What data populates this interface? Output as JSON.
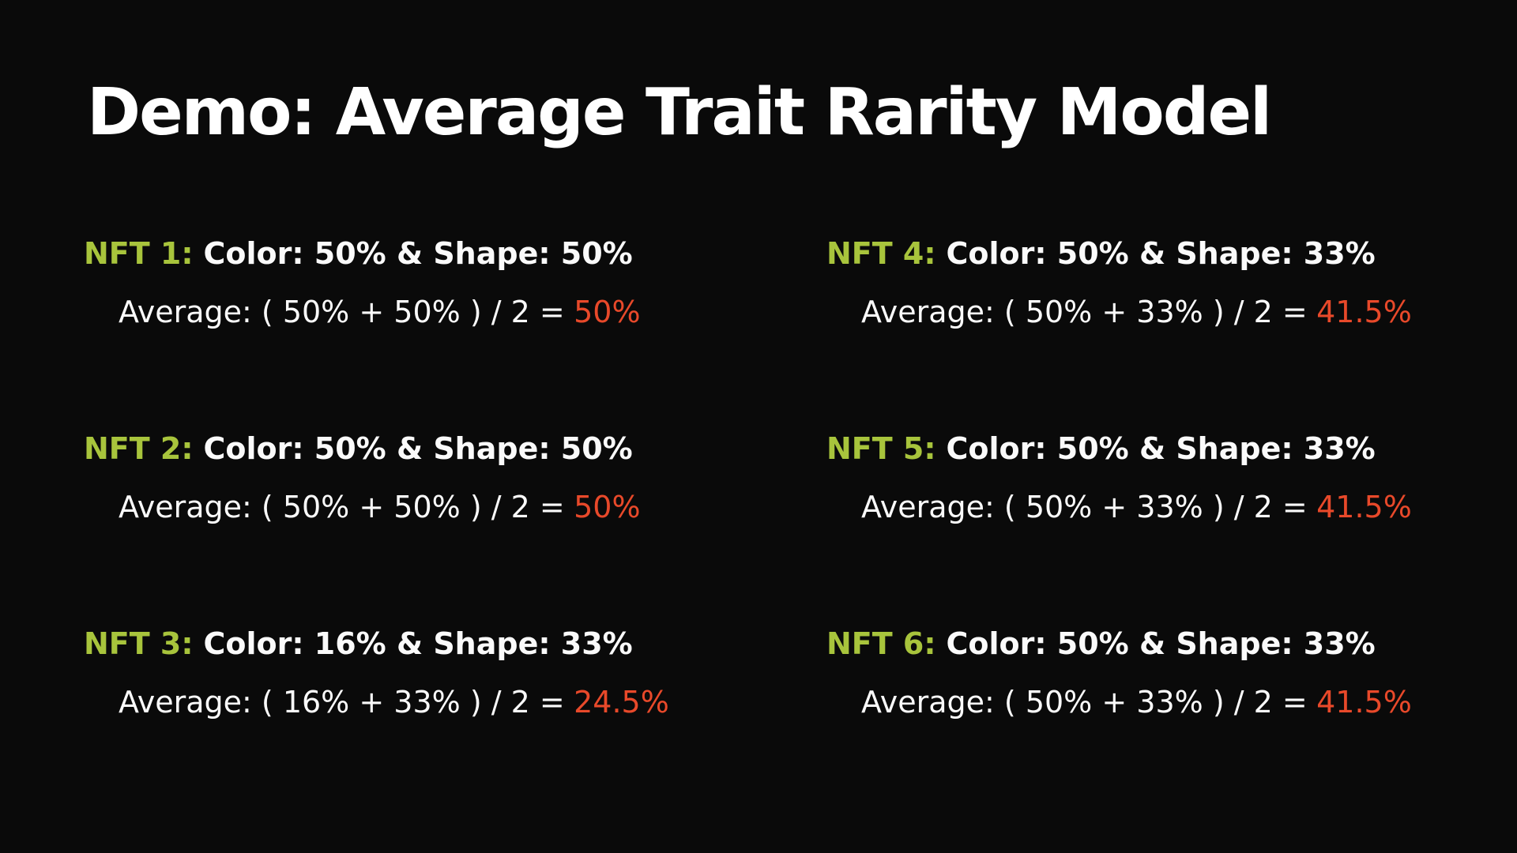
{
  "title": "Demo: Average Trait Rarity Model",
  "theme": {
    "background": "#0a0a0a",
    "title_color": "#ffffff",
    "body_color": "#fafafa",
    "accent_green": "#a8c43c",
    "accent_red": "#e8492a"
  },
  "nfts": [
    {
      "label": "NFT 1:",
      "traits": "Color: 50% & Shape: 50%",
      "formula": "Average: ( 50% + 50% ) / 2 =",
      "result": "50%"
    },
    {
      "label": "NFT 2:",
      "traits": "Color: 50% & Shape: 50%",
      "formula": "Average: ( 50% + 50% ) / 2 =",
      "result": "50%"
    },
    {
      "label": "NFT 3:",
      "traits": "Color: 16% & Shape: 33%",
      "formula": "Average: ( 16% + 33% ) / 2 =",
      "result": "24.5%"
    },
    {
      "label": "NFT 4:",
      "traits": "Color: 50% & Shape: 33%",
      "formula": "Average: ( 50% + 33% ) / 2 =",
      "result": "41.5%"
    },
    {
      "label": "NFT 5:",
      "traits": "Color: 50% & Shape: 33%",
      "formula": "Average: ( 50% + 33% ) / 2 =",
      "result": "41.5%"
    },
    {
      "label": "NFT 6:",
      "traits": "Color: 50% & Shape: 33%",
      "formula": "Average: ( 50% + 33% ) / 2 =",
      "result": "41.5%"
    }
  ]
}
